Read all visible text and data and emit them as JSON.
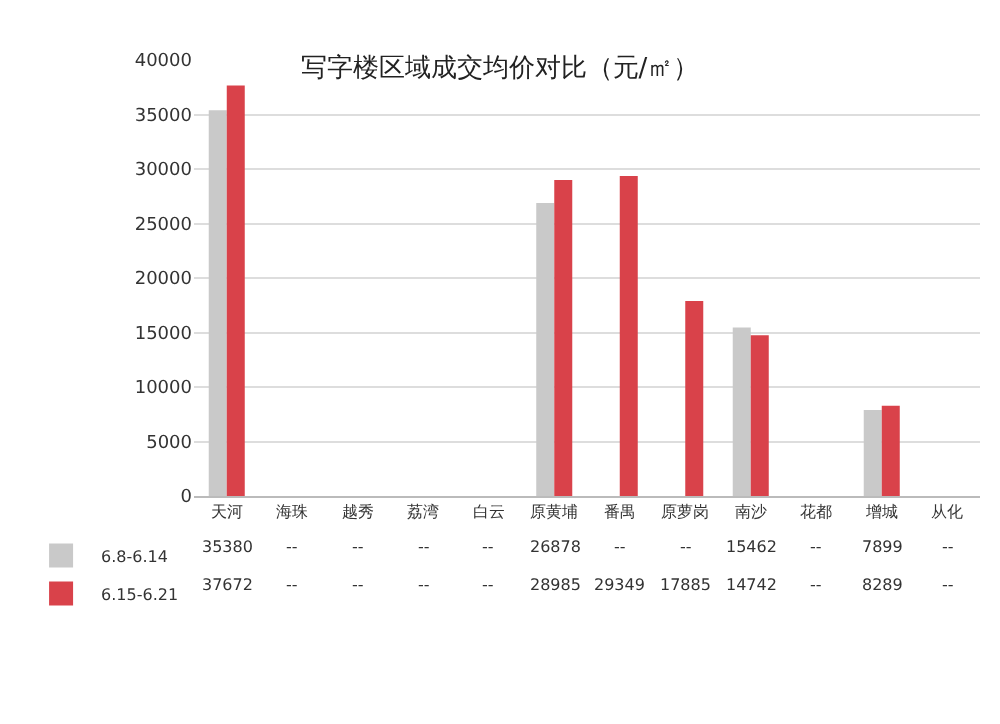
{
  "chart_data": {
    "type": "bar",
    "title": "写字楼区域成交均价对比（元/㎡）",
    "categories": [
      "天河",
      "海珠",
      "越秀",
      "荔湾",
      "白云",
      "原黄埔",
      "番禺",
      "原萝岗",
      "南沙",
      "花都",
      "增城",
      "从化"
    ],
    "series": [
      {
        "name": "6.8-6.14",
        "color": "#c9c9c9",
        "values": [
          35380,
          null,
          null,
          null,
          null,
          26878,
          null,
          null,
          15462,
          null,
          7899,
          null
        ],
        "value_labels": [
          "35380",
          "--",
          "--",
          "--",
          "--",
          "26878",
          "--",
          "--",
          "15462",
          "--",
          "7899",
          "--"
        ]
      },
      {
        "name": "6.15-6.21",
        "color": "#d9424a",
        "values": [
          37672,
          null,
          null,
          null,
          null,
          28985,
          29349,
          17885,
          14742,
          null,
          8289,
          null
        ],
        "value_labels": [
          "37672",
          "--",
          "--",
          "--",
          "--",
          "28985",
          "29349",
          "17885",
          "14742",
          "--",
          "8289",
          "--"
        ]
      }
    ],
    "ylim": [
      0,
      40000
    ],
    "yticks": [
      0,
      5000,
      10000,
      15000,
      20000,
      25000,
      30000,
      35000,
      40000
    ],
    "grid": "y",
    "legend": "bottom left"
  }
}
